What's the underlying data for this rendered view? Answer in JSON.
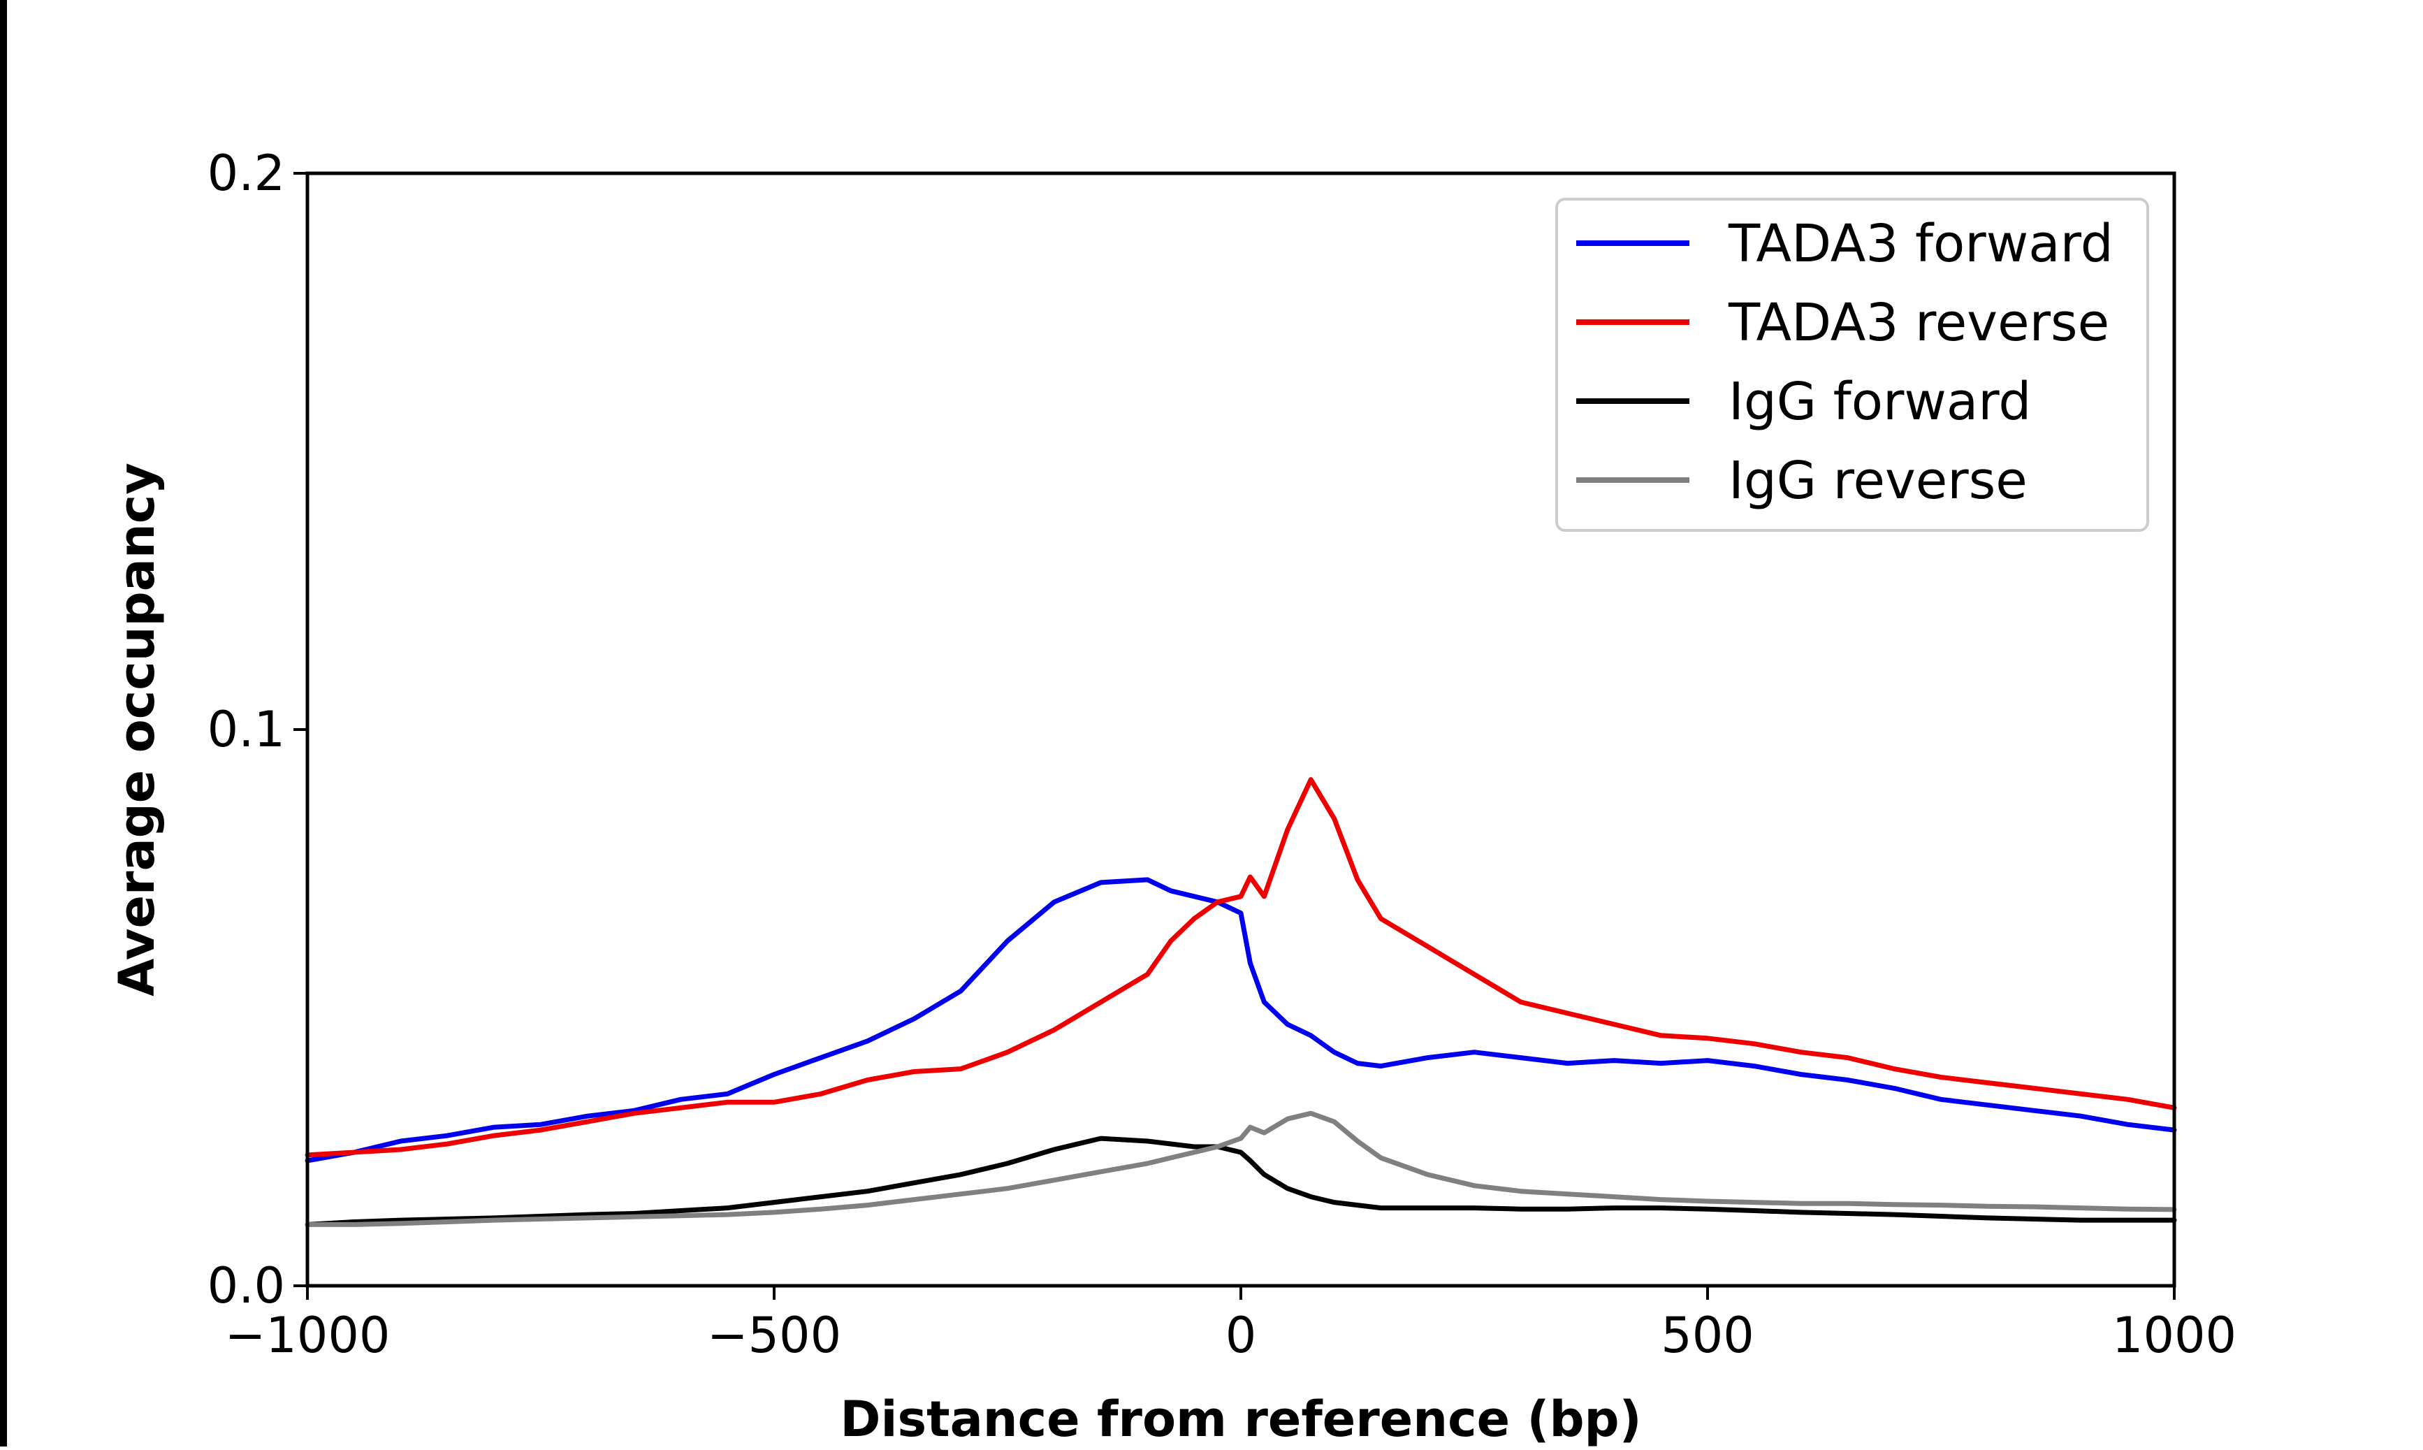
{
  "chart_data": {
    "type": "line",
    "title": "",
    "xlabel": "Distance from reference (bp)",
    "ylabel": "Average occupancy",
    "xlim": [
      -1000,
      1000
    ],
    "ylim": [
      0.0,
      0.2
    ],
    "x_ticks": [
      -1000,
      -500,
      0,
      500,
      1000
    ],
    "x_tick_labels": [
      "−1000",
      "−500",
      "0",
      "500",
      "1000"
    ],
    "y_ticks": [
      0.0,
      0.1,
      0.2
    ],
    "y_tick_labels": [
      "0.0",
      "0.1",
      "0.2"
    ],
    "grid": false,
    "legend_position": "top-right",
    "x": [
      -1000,
      -950,
      -900,
      -850,
      -800,
      -750,
      -700,
      -650,
      -600,
      -550,
      -500,
      -450,
      -400,
      -350,
      -300,
      -250,
      -200,
      -150,
      -100,
      -75,
      -50,
      -25,
      0,
      10,
      25,
      50,
      75,
      100,
      125,
      150,
      200,
      250,
      300,
      350,
      400,
      450,
      500,
      550,
      600,
      650,
      700,
      750,
      800,
      850,
      900,
      950,
      1000
    ],
    "series": [
      {
        "name": "TADA3 forward",
        "color": "#0000ee",
        "values": [
          0.0225,
          0.024,
          0.026,
          0.027,
          0.0285,
          0.029,
          0.0305,
          0.0315,
          0.0335,
          0.0345,
          0.038,
          0.041,
          0.044,
          0.048,
          0.053,
          0.062,
          0.069,
          0.0725,
          0.073,
          0.071,
          0.07,
          0.069,
          0.067,
          0.058,
          0.051,
          0.047,
          0.045,
          0.042,
          0.04,
          0.0395,
          0.041,
          0.042,
          0.041,
          0.04,
          0.0405,
          0.04,
          0.0405,
          0.0395,
          0.038,
          0.037,
          0.0355,
          0.0335,
          0.0325,
          0.0315,
          0.0305,
          0.029,
          0.028
        ]
      },
      {
        "name": "TADA3 reverse",
        "color": "#ee0000",
        "values": [
          0.0235,
          0.024,
          0.0245,
          0.0255,
          0.027,
          0.028,
          0.0295,
          0.031,
          0.032,
          0.033,
          0.033,
          0.0345,
          0.037,
          0.0385,
          0.039,
          0.042,
          0.046,
          0.051,
          0.056,
          0.062,
          0.066,
          0.069,
          0.07,
          0.0735,
          0.07,
          0.082,
          0.091,
          0.084,
          0.073,
          0.066,
          0.061,
          0.056,
          0.051,
          0.049,
          0.047,
          0.045,
          0.0445,
          0.0435,
          0.042,
          0.041,
          0.039,
          0.0375,
          0.0365,
          0.0355,
          0.0345,
          0.0335,
          0.032
        ]
      },
      {
        "name": "IgG forward",
        "color": "#000000",
        "values": [
          0.011,
          0.0115,
          0.0118,
          0.012,
          0.0122,
          0.0125,
          0.0128,
          0.013,
          0.0135,
          0.014,
          0.015,
          0.016,
          0.017,
          0.0185,
          0.02,
          0.022,
          0.0245,
          0.0265,
          0.026,
          0.0255,
          0.025,
          0.025,
          0.024,
          0.0225,
          0.02,
          0.0175,
          0.016,
          0.015,
          0.0145,
          0.014,
          0.014,
          0.014,
          0.0138,
          0.0138,
          0.014,
          0.014,
          0.0138,
          0.0135,
          0.0132,
          0.013,
          0.0128,
          0.0125,
          0.0122,
          0.012,
          0.0118,
          0.0118,
          0.0118
        ]
      },
      {
        "name": "IgG reverse",
        "color": "#808080",
        "values": [
          0.011,
          0.011,
          0.0112,
          0.0115,
          0.0118,
          0.012,
          0.0122,
          0.0124,
          0.0126,
          0.0128,
          0.0132,
          0.0138,
          0.0145,
          0.0155,
          0.0165,
          0.0175,
          0.019,
          0.0205,
          0.022,
          0.023,
          0.024,
          0.025,
          0.0265,
          0.0285,
          0.0275,
          0.03,
          0.031,
          0.0295,
          0.026,
          0.023,
          0.02,
          0.018,
          0.017,
          0.0165,
          0.016,
          0.0155,
          0.0152,
          0.015,
          0.0148,
          0.0148,
          0.0146,
          0.0145,
          0.0143,
          0.0142,
          0.014,
          0.0138,
          0.0137
        ]
      }
    ]
  }
}
